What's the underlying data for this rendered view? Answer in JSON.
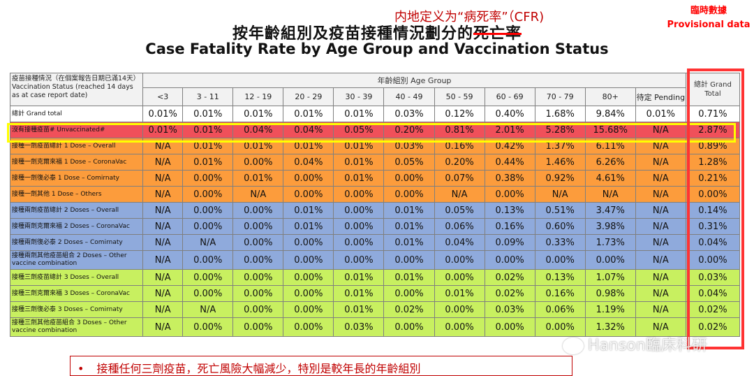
{
  "annotation_cfr": "内地定义为“病死率”（CFR)",
  "provisional": {
    "zh": "臨時數據",
    "en": "Provisional data"
  },
  "title_zh_prefix": "按年齡組別及疫苗接種情況劃分的",
  "title_zh_struck": "死亡率",
  "title_en": "Case Fatality Rate by Age Group and Vaccination Status",
  "table": {
    "status_header": "疫苗接種情況（在個案報告日期已滿14天）Vaccination Status (reached 14 days as at case report date)",
    "age_group_header": "年齡組別 Age Group",
    "grand_total_header": "總計 Grand Total",
    "age_groups": [
      "<3",
      "3 - 11",
      "12 - 19",
      "20 - 29",
      "30 - 39",
      "40 - 49",
      "50 - 59",
      "60 - 69",
      "70 - 79",
      "80+",
      "待定 Pending"
    ],
    "rows": [
      {
        "label": "總計 Grand total",
        "color": "white",
        "values": [
          "0.01%",
          "0.01%",
          "0.01%",
          "0.01%",
          "0.01%",
          "0.03%",
          "0.12%",
          "0.40%",
          "1.68%",
          "9.84%",
          "0.01%",
          "0.71%"
        ]
      },
      {
        "label": "沒有接種疫苗# Unvaccinated#",
        "color": "red",
        "values": [
          "0.01%",
          "0.01%",
          "0.04%",
          "0.04%",
          "0.05%",
          "0.20%",
          "0.81%",
          "2.01%",
          "5.28%",
          "15.68%",
          "N/A",
          "2.87%"
        ]
      },
      {
        "label": "接種一劑疫苗總計 1 Dose – Overall",
        "color": "orange",
        "values": [
          "N/A",
          "0.01%",
          "0.01%",
          "0.01%",
          "0.01%",
          "0.03%",
          "0.16%",
          "0.42%",
          "1.37%",
          "6.11%",
          "N/A",
          "0.89%"
        ]
      },
      {
        "label": "接種一劑克爾來福 1 Dose – CoronaVac",
        "color": "orange",
        "values": [
          "N/A",
          "0.01%",
          "0.00%",
          "0.04%",
          "0.01%",
          "0.05%",
          "0.20%",
          "0.44%",
          "1.46%",
          "6.26%",
          "N/A",
          "1.28%"
        ]
      },
      {
        "label": "接種一劑復必泰 1 Dose – Comirnaty",
        "color": "orange",
        "values": [
          "N/A",
          "0.00%",
          "0.01%",
          "0.00%",
          "0.01%",
          "0.00%",
          "0.07%",
          "0.38%",
          "0.92%",
          "4.61%",
          "N/A",
          "0.21%"
        ]
      },
      {
        "label": "接種一劑其他 1 Dose – Others",
        "color": "orange",
        "values": [
          "N/A",
          "0.00%",
          "N/A",
          "0.00%",
          "0.00%",
          "0.00%",
          "N/A",
          "0.00%",
          "N/A",
          "N/A",
          "N/A",
          "0.00%"
        ]
      },
      {
        "label": "接種兩劑疫苗總計 2 Doses – Overall",
        "color": "blue",
        "values": [
          "N/A",
          "0.00%",
          "0.00%",
          "0.01%",
          "0.00%",
          "0.01%",
          "0.05%",
          "0.13%",
          "0.51%",
          "3.47%",
          "N/A",
          "0.14%"
        ]
      },
      {
        "label": "接種兩劑克爾來福 2 Doses – CoronaVac",
        "color": "blue",
        "values": [
          "N/A",
          "0.00%",
          "0.00%",
          "0.01%",
          "0.00%",
          "0.01%",
          "0.06%",
          "0.16%",
          "0.60%",
          "3.98%",
          "N/A",
          "0.31%"
        ]
      },
      {
        "label": "接種兩劑復必泰 2 Doses – Comirnaty",
        "color": "blue",
        "values": [
          "N/A",
          "N/A",
          "0.00%",
          "0.00%",
          "0.00%",
          "0.01%",
          "0.04%",
          "0.09%",
          "0.33%",
          "1.73%",
          "N/A",
          "0.04%"
        ]
      },
      {
        "label": "接種兩劑其他疫苗組合 2 Doses – Other vaccine combination",
        "color": "blue",
        "tall": true,
        "values": [
          "N/A",
          "0.00%",
          "0.00%",
          "0.00%",
          "0.00%",
          "0.00%",
          "0.00%",
          "0.00%",
          "0.00%",
          "0.00%",
          "N/A",
          "0.00%"
        ]
      },
      {
        "label": "接種三劑疫苗總計 3 Doses – Overall",
        "color": "green",
        "values": [
          "N/A",
          "0.00%",
          "0.00%",
          "0.00%",
          "0.01%",
          "0.01%",
          "0.00%",
          "0.02%",
          "0.13%",
          "1.07%",
          "N/A",
          "0.03%"
        ]
      },
      {
        "label": "接種三劑克爾來福 3 Doses – CoronaVac",
        "color": "green",
        "values": [
          "N/A",
          "0.00%",
          "0.00%",
          "0.00%",
          "0.01%",
          "0.00%",
          "0.01%",
          "0.02%",
          "0.16%",
          "0.98%",
          "N/A",
          "0.04%"
        ]
      },
      {
        "label": "接種三劑復必泰 3 Doses – Comirnaty",
        "color": "green",
        "values": [
          "N/A",
          "N/A",
          "0.00%",
          "0.00%",
          "0.01%",
          "0.02%",
          "0.00%",
          "0.03%",
          "0.06%",
          "1.19%",
          "N/A",
          "0.02%"
        ]
      },
      {
        "label": "接種三劑其他疫苗組合 3 Doses – Other vaccine combination",
        "color": "green",
        "tall": true,
        "values": [
          "N/A",
          "0.00%",
          "0.00%",
          "0.00%",
          "0.03%",
          "0.00%",
          "0.00%",
          "0.00%",
          "0.00%",
          "1.32%",
          "N/A",
          "0.02%"
        ]
      }
    ]
  },
  "note": {
    "bullet": "•",
    "text": "接種任何三劑疫苗，死亡風險大幅減少，特別是較年長的年齡組別"
  },
  "watermark": "Hanson臨床科研"
}
